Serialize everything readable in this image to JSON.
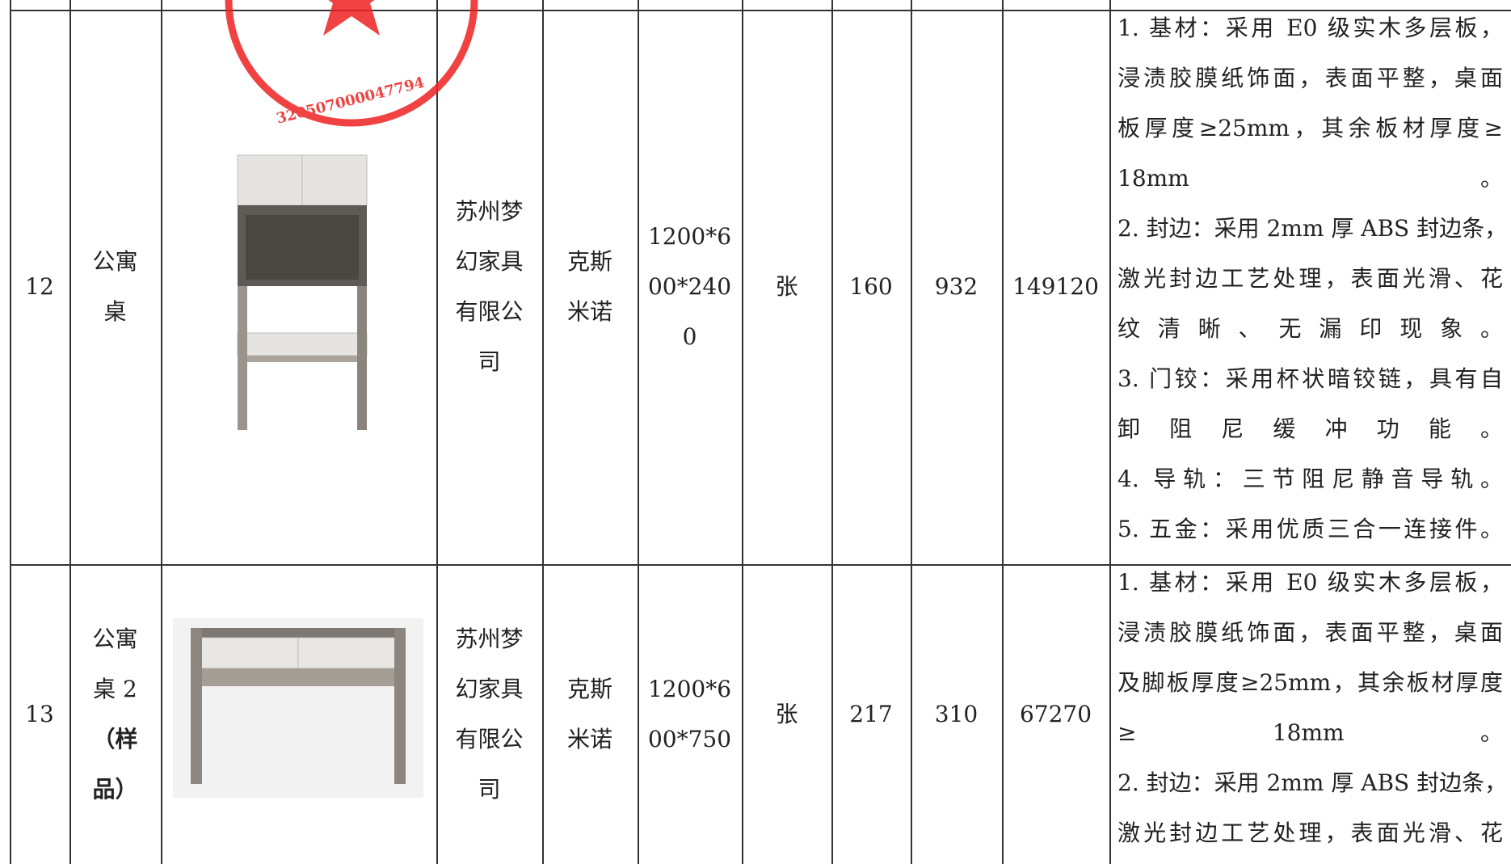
{
  "table": {
    "rows": [
      {
        "no": "12",
        "name": [
          "公寓",
          "桌"
        ],
        "supplier": [
          "苏州梦",
          "幻家具",
          "有限公",
          "司"
        ],
        "brand": [
          "克斯",
          "米诺"
        ],
        "size": [
          "1200*6",
          "00*240",
          "0"
        ],
        "unit": "张",
        "qty": "160",
        "price": "932",
        "total": "149120",
        "desc": [
          "1. 基材：采用 E0 级实木多层板，",
          "浸渍胶膜纸饰面，表面平整，桌面",
          "板厚度≥25mm，其余板材厚度≥",
          [
            "18mm",
            "。"
          ],
          "2. 封边：采用 2mm 厚 ABS 封边条，",
          "激光封边工艺处理，表面光滑、花",
          "纹清晰、无漏印现象。",
          "3. 门铰：采用杯状暗铰链，具有自",
          "卸阻尼缓冲功能。",
          "4. 导轨：三节阻尼静音导轨。",
          "5. 五金：采用优质三合一连接件。"
        ]
      },
      {
        "no": "13",
        "name": [
          "公寓",
          "桌 2",
          "（样",
          "品）"
        ],
        "supplier": [
          "苏州梦",
          "幻家具",
          "有限公",
          "司"
        ],
        "brand": [
          "克斯",
          "米诺"
        ],
        "size": [
          "1200*6",
          "00*750"
        ],
        "unit": "张",
        "qty": "217",
        "price": "310",
        "total": "67270",
        "desc": [
          "1. 基材：采用 E0 级实木多层板，",
          "浸渍胶膜纸饰面，表面平整，桌面",
          "及脚板厚度≥25mm，其余板材厚度",
          [
            "≥",
            "18mm",
            "。"
          ],
          "2. 封边：采用 2mm 厚 ABS 封边条，",
          "激光封边工艺处理，表面光滑、花"
        ]
      }
    ]
  },
  "stamp": {
    "number": "320507000047794"
  }
}
